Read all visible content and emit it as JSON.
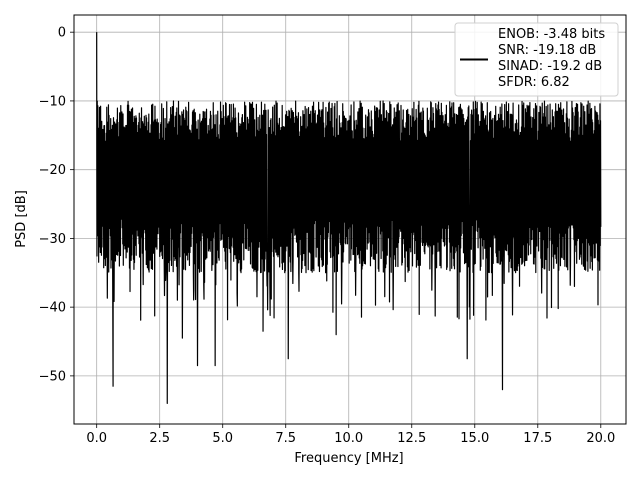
{
  "chart_data": {
    "type": "line",
    "title": "",
    "xlabel": "Frequency [MHz]",
    "ylabel": "PSD [dB]",
    "xlim": [
      -0.9,
      21.0
    ],
    "ylim": [
      -57,
      2.5
    ],
    "xticks": [
      0.0,
      2.5,
      5.0,
      7.5,
      10.0,
      12.5,
      15.0,
      17.5,
      20.0
    ],
    "xtick_labels": [
      "0.0",
      "2.5",
      "5.0",
      "7.5",
      "10.0",
      "12.5",
      "15.0",
      "17.5",
      "20.0"
    ],
    "yticks": [
      0,
      -10,
      -20,
      -30,
      -40,
      -50
    ],
    "ytick_labels": [
      "0",
      "−10",
      "−20",
      "−30",
      "−40",
      "−50"
    ],
    "grid": true,
    "legend": {
      "placement": "upper right",
      "entries": [
        "ENOB: -3.48 bits",
        "SNR: -19.18 dB",
        "SINAD: -19.2 dB",
        "SFDR: 6.82"
      ]
    },
    "series": [
      {
        "color": "#000000",
        "x_range": [
          0.0,
          20.0
        ],
        "peak": {
          "x": 0.0,
          "y": 0.0
        },
        "noise_floor_mean": -22,
        "noise_floor_top": -12,
        "noise_floor_bottom": -35,
        "notable_minima": [
          {
            "x": 0.65,
            "y": -51.5
          },
          {
            "x": 2.8,
            "y": -54.0
          },
          {
            "x": 3.4,
            "y": -44.5
          },
          {
            "x": 4.0,
            "y": -48.5
          },
          {
            "x": 4.7,
            "y": -48.5
          },
          {
            "x": 6.6,
            "y": -43.5
          },
          {
            "x": 7.6,
            "y": -47.5
          },
          {
            "x": 9.5,
            "y": -44.0
          },
          {
            "x": 14.7,
            "y": -47.5
          },
          {
            "x": 16.1,
            "y": -52.0
          }
        ]
      }
    ]
  },
  "colors": {
    "line": "#000000",
    "grid": "#b0b0b0",
    "axes": "#000000",
    "background": "#ffffff"
  }
}
